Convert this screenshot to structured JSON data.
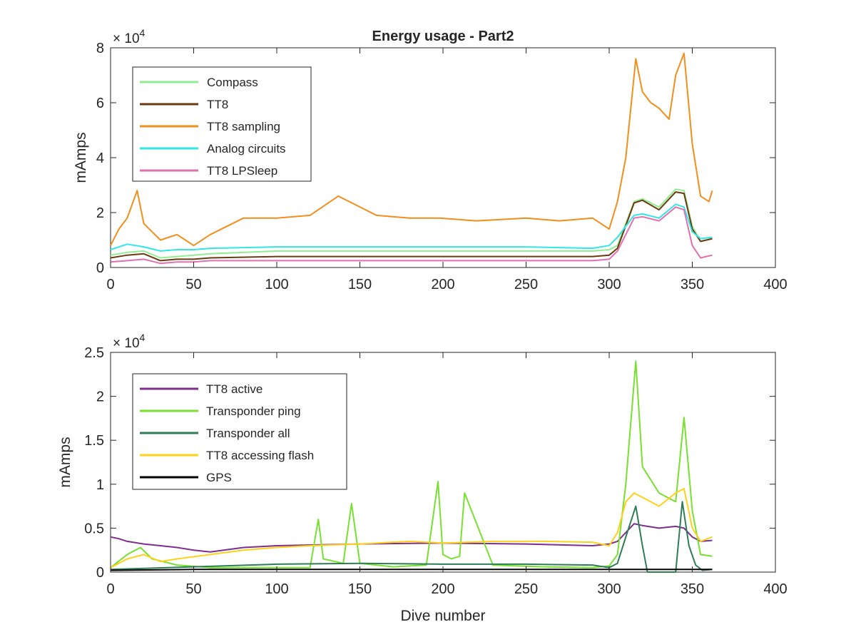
{
  "chart_data": [
    {
      "type": "line",
      "title": "Energy usage - Part2",
      "xlabel": "",
      "ylabel": "mAmps",
      "xlim": [
        0,
        400
      ],
      "ylim": [
        0,
        80000
      ],
      "xticks": [
        0,
        50,
        100,
        150,
        200,
        250,
        300,
        350,
        400
      ],
      "yticks": [
        0,
        20000,
        40000,
        60000,
        80000
      ],
      "xtick_labels": [
        "0",
        "50",
        "100",
        "150",
        "200",
        "250",
        "300",
        "350",
        "400"
      ],
      "ytick_labels": [
        "0",
        "2",
        "4",
        "6",
        "8"
      ],
      "exponent_label": "× 10",
      "exponent_power": "4",
      "legend_position": "top-left",
      "grid": false,
      "series": [
        {
          "name": "Compass",
          "color": "#90ee90",
          "x": [
            0,
            10,
            20,
            30,
            40,
            50,
            60,
            100,
            150,
            200,
            250,
            290,
            300,
            305,
            315,
            320,
            330,
            340,
            345,
            350,
            355,
            362
          ],
          "y": [
            4500,
            5500,
            6000,
            3500,
            4000,
            4500,
            5000,
            6000,
            6000,
            6000,
            6000,
            6000,
            6500,
            8000,
            24000,
            25000,
            22000,
            28500,
            28000,
            15000,
            9500,
            10500
          ]
        },
        {
          "name": "TT8",
          "color": "#6b3a10",
          "x": [
            0,
            10,
            20,
            30,
            40,
            50,
            60,
            100,
            150,
            200,
            250,
            290,
            300,
            305,
            315,
            320,
            330,
            340,
            345,
            350,
            355,
            362
          ],
          "y": [
            3500,
            4500,
            5000,
            2500,
            3000,
            3000,
            3500,
            4000,
            4000,
            4000,
            4000,
            4000,
            4500,
            7000,
            23500,
            24500,
            21000,
            27500,
            27000,
            14000,
            9500,
            10500
          ]
        },
        {
          "name": "TT8 sampling",
          "color": "#f28e1c",
          "x": [
            0,
            5,
            10,
            16,
            20,
            30,
            40,
            50,
            60,
            80,
            100,
            120,
            137,
            160,
            180,
            198,
            220,
            250,
            270,
            290,
            300,
            305,
            310,
            316,
            320,
            325,
            330,
            336,
            340,
            345,
            350,
            355,
            360,
            362
          ],
          "y": [
            8000,
            14000,
            18000,
            28000,
            16000,
            10000,
            12000,
            8000,
            12000,
            18000,
            18000,
            19000,
            26000,
            19000,
            18000,
            18000,
            17000,
            18000,
            17000,
            18000,
            14000,
            24000,
            40000,
            76000,
            64000,
            60000,
            58000,
            54000,
            70000,
            78000,
            45000,
            26000,
            24000,
            28000
          ]
        },
        {
          "name": "Analog circuits",
          "color": "#33e6e6",
          "x": [
            0,
            10,
            20,
            30,
            40,
            50,
            60,
            100,
            150,
            200,
            250,
            290,
            300,
            305,
            315,
            320,
            330,
            340,
            345,
            350,
            355,
            362
          ],
          "y": [
            6500,
            8500,
            7500,
            6000,
            6500,
            6500,
            7000,
            7500,
            7500,
            7500,
            7500,
            7000,
            8000,
            11000,
            19000,
            19500,
            18000,
            23000,
            22000,
            13000,
            10500,
            11000
          ]
        },
        {
          "name": "TT8 LPSleep",
          "color": "#e070b0",
          "x": [
            0,
            10,
            20,
            30,
            40,
            50,
            60,
            100,
            150,
            200,
            250,
            290,
            300,
            305,
            315,
            320,
            330,
            340,
            345,
            350,
            355,
            362
          ],
          "y": [
            2000,
            2500,
            3000,
            1500,
            2000,
            2000,
            2500,
            2500,
            2500,
            2500,
            2500,
            2500,
            3000,
            6000,
            18000,
            18500,
            17000,
            22000,
            21000,
            8000,
            3500,
            4500
          ]
        }
      ]
    },
    {
      "type": "line",
      "title": "",
      "xlabel": "Dive number",
      "ylabel": "mAmps",
      "xlim": [
        0,
        400
      ],
      "ylim": [
        0,
        25000
      ],
      "xticks": [
        0,
        50,
        100,
        150,
        200,
        250,
        300,
        350,
        400
      ],
      "yticks": [
        0,
        5000,
        10000,
        15000,
        20000,
        25000
      ],
      "xtick_labels": [
        "0",
        "50",
        "100",
        "150",
        "200",
        "250",
        "300",
        "350",
        "400"
      ],
      "ytick_labels": [
        "0",
        "0.5",
        "1",
        "1.5",
        "2",
        "2.5"
      ],
      "exponent_label": "× 10",
      "exponent_power": "4",
      "legend_position": "top-left",
      "grid": false,
      "series": [
        {
          "name": "TT8 active",
          "color": "#7e2f8e",
          "x": [
            0,
            5,
            10,
            20,
            30,
            40,
            50,
            60,
            80,
            100,
            150,
            200,
            250,
            290,
            300,
            305,
            310,
            315,
            320,
            330,
            340,
            345,
            350,
            355,
            362
          ],
          "y": [
            4000,
            3800,
            3500,
            3200,
            3000,
            2800,
            2500,
            2300,
            2800,
            3000,
            3200,
            3300,
            3200,
            3000,
            3200,
            3500,
            4500,
            5500,
            5300,
            5000,
            5200,
            5000,
            4000,
            3500,
            3600
          ]
        },
        {
          "name": "Transponder ping",
          "color": "#77e030",
          "x": [
            0,
            10,
            18,
            25,
            40,
            60,
            100,
            120,
            125,
            128,
            140,
            145,
            150,
            170,
            190,
            197,
            200,
            205,
            210,
            213,
            230,
            260,
            290,
            300,
            305,
            310,
            316,
            320,
            330,
            340,
            345,
            350,
            355,
            362
          ],
          "y": [
            500,
            2000,
            2800,
            1500,
            800,
            500,
            500,
            500,
            6000,
            1500,
            1000,
            7800,
            1000,
            600,
            800,
            10300,
            2000,
            1500,
            1800,
            9000,
            800,
            600,
            500,
            700,
            2000,
            10000,
            24000,
            12000,
            9000,
            8000,
            17600,
            7000,
            2000,
            1800
          ]
        },
        {
          "name": "Transponder all",
          "color": "#2e7d55",
          "x": [
            0,
            50,
            100,
            150,
            200,
            250,
            290,
            300,
            305,
            310,
            316,
            320,
            323,
            340,
            344,
            348,
            352,
            356,
            362
          ],
          "y": [
            300,
            600,
            900,
            1000,
            900,
            900,
            800,
            500,
            1000,
            4000,
            7500,
            3000,
            0,
            0,
            8000,
            3000,
            800,
            200,
            300
          ]
        },
        {
          "name": "TT8 accessing flash",
          "color": "#ffd11a",
          "x": [
            0,
            10,
            20,
            30,
            40,
            60,
            80,
            100,
            120,
            150,
            180,
            200,
            230,
            260,
            290,
            300,
            305,
            310,
            315,
            320,
            330,
            340,
            345,
            350,
            355,
            362
          ],
          "y": [
            500,
            1500,
            2000,
            1200,
            1500,
            2000,
            2500,
            2800,
            3000,
            3200,
            3500,
            3300,
            3500,
            3500,
            3400,
            3000,
            4500,
            8000,
            9000,
            8500,
            7500,
            9000,
            9500,
            5000,
            3500,
            4000
          ]
        },
        {
          "name": "GPS",
          "color": "#000000",
          "x": [
            0,
            50,
            100,
            150,
            200,
            250,
            300,
            350,
            362
          ],
          "y": [
            200,
            300,
            300,
            300,
            300,
            300,
            300,
            300,
            300
          ]
        }
      ]
    }
  ]
}
